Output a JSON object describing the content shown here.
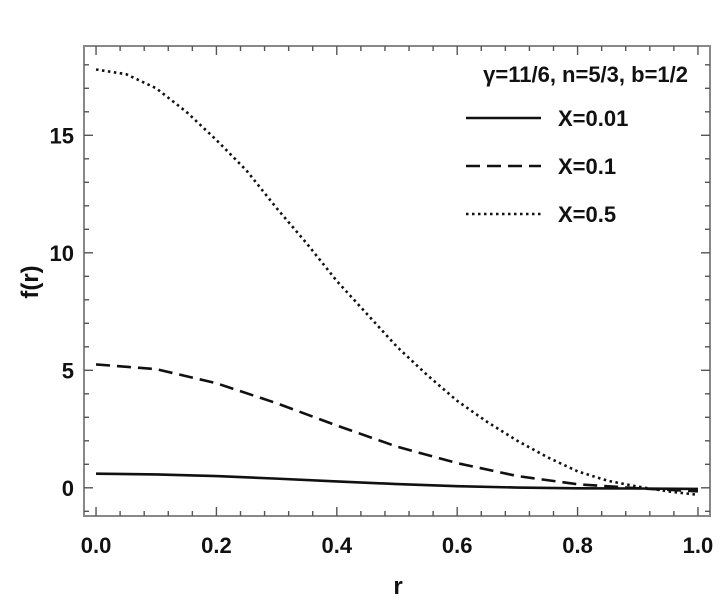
{
  "chart_data": {
    "type": "line",
    "title": "",
    "xlabel": "r",
    "ylabel": "f(r)",
    "xlim": [
      -0.02,
      1.02
    ],
    "ylim": [
      -1.2,
      18.8
    ],
    "x_ticks": [
      0.0,
      0.2,
      0.4,
      0.6,
      0.8,
      1.0
    ],
    "x_tick_labels": [
      "0.0",
      "0.2",
      "0.4",
      "0.6",
      "0.8",
      "1.0"
    ],
    "y_ticks": [
      0,
      5,
      10,
      15
    ],
    "y_tick_labels": [
      "0",
      "5",
      "10",
      "15"
    ],
    "grid": false,
    "legend_position": "top-right",
    "legend_title": "γ=11/6, n=5/3, b=1/2",
    "series": [
      {
        "name": "X=0.01",
        "style": "solid",
        "x": [
          0.0,
          0.1,
          0.2,
          0.3,
          0.4,
          0.5,
          0.6,
          0.7,
          0.8,
          0.9,
          1.0
        ],
        "y": [
          0.6,
          0.57,
          0.5,
          0.39,
          0.27,
          0.16,
          0.07,
          0.01,
          -0.02,
          -0.03,
          -0.05
        ]
      },
      {
        "name": "X=0.1",
        "style": "dashed",
        "x": [
          0.0,
          0.1,
          0.2,
          0.3,
          0.4,
          0.5,
          0.6,
          0.7,
          0.8,
          0.9,
          1.0
        ],
        "y": [
          5.25,
          5.05,
          4.45,
          3.6,
          2.65,
          1.75,
          1.05,
          0.5,
          0.15,
          -0.02,
          -0.15
        ]
      },
      {
        "name": "X=0.5",
        "style": "dotted",
        "x": [
          0.0,
          0.05,
          0.1,
          0.15,
          0.2,
          0.25,
          0.3,
          0.35,
          0.4,
          0.45,
          0.5,
          0.55,
          0.6,
          0.65,
          0.7,
          0.75,
          0.8,
          0.85,
          0.9,
          0.95,
          1.0
        ],
        "y": [
          17.8,
          17.6,
          17.0,
          16.0,
          14.8,
          13.5,
          11.9,
          10.4,
          8.8,
          7.4,
          6.0,
          4.8,
          3.7,
          2.8,
          2.0,
          1.3,
          0.7,
          0.3,
          0.05,
          -0.15,
          -0.3
        ]
      }
    ]
  }
}
